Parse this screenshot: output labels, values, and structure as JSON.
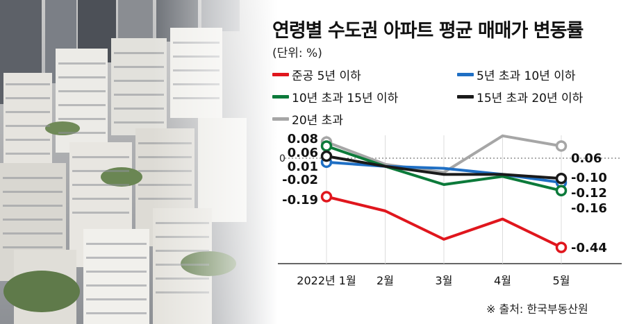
{
  "title": "연령별 수도권 아파트 평균 매매가 변동률",
  "unit": "(단위: %)",
  "source": "※ 출처: 한국부동산원",
  "legend": [
    {
      "label": "준공 5년 이하",
      "color": "#e0161d"
    },
    {
      "label": "5년 초과 10년 이하",
      "color": "#1f6fc4"
    },
    {
      "label": "10년 초과 15년 이하",
      "color": "#0c7a3a"
    },
    {
      "label": "15년 초과 20년 이하",
      "color": "#1a1a1a"
    },
    {
      "label": "20년 초과",
      "color": "#a6a6a6"
    }
  ],
  "chart_data": {
    "type": "line",
    "categories": [
      "2022년 1월",
      "2월",
      "3월",
      "4월",
      "5월"
    ],
    "zero_label": "0",
    "series": [
      {
        "name": "20년 초과",
        "color": "#a6a6a6",
        "values": [
          0.08,
          -0.03,
          -0.07,
          0.11,
          0.06
        ]
      },
      {
        "name": "5년 초과 10년 이하",
        "color": "#1f6fc4",
        "values": [
          -0.02,
          -0.04,
          -0.05,
          -0.08,
          -0.12
        ]
      },
      {
        "name": "10년 초과 15년 이하",
        "color": "#0c7a3a",
        "values": [
          0.06,
          -0.04,
          -0.13,
          -0.09,
          -0.16
        ]
      },
      {
        "name": "15년 초과 20년 이하",
        "color": "#1a1a1a",
        "values": [
          0.01,
          -0.04,
          -0.08,
          -0.08,
          -0.1
        ]
      },
      {
        "name": "준공 5년 이하",
        "color": "#e0161d",
        "values": [
          -0.19,
          -0.26,
          -0.4,
          -0.3,
          -0.44
        ]
      }
    ],
    "start_labels": [
      "0.08",
      "0.06",
      "0.01",
      "-0.02",
      "-0.19"
    ],
    "end_labels": [
      "0.06",
      "-0.10",
      "-0.12",
      "-0.16",
      "-0.44"
    ],
    "ylim": [
      -0.52,
      0.13
    ]
  }
}
